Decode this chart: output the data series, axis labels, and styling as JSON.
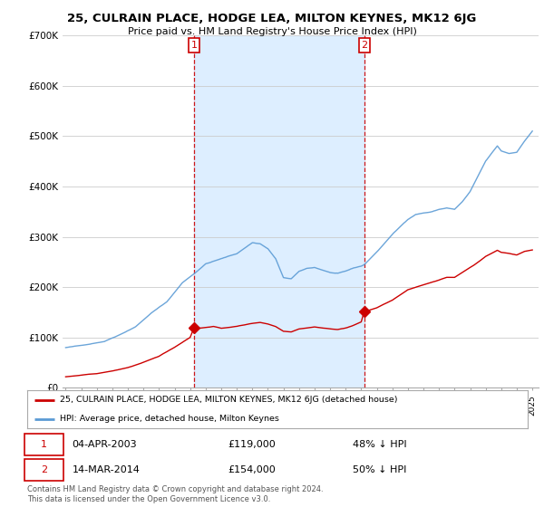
{
  "title": "25, CULRAIN PLACE, HODGE LEA, MILTON KEYNES, MK12 6JG",
  "subtitle": "Price paid vs. HM Land Registry's House Price Index (HPI)",
  "legend_property": "25, CULRAIN PLACE, HODGE LEA, MILTON KEYNES, MK12 6JG (detached house)",
  "legend_hpi": "HPI: Average price, detached house, Milton Keynes",
  "transaction1_date": "04-APR-2003",
  "transaction1_price": 119000,
  "transaction1_label": "48% ↓ HPI",
  "transaction2_date": "14-MAR-2014",
  "transaction2_price": 154000,
  "transaction2_label": "50% ↓ HPI",
  "footer": "Contains HM Land Registry data © Crown copyright and database right 2024.\nThis data is licensed under the Open Government Licence v3.0.",
  "property_color": "#cc0000",
  "hpi_color": "#5b9bd5",
  "shade_color": "#ddeeff",
  "vline_color": "#cc0000",
  "t1_year": 2003.25,
  "t2_year": 2014.2,
  "ylim": [
    0,
    700000
  ],
  "yticks": [
    0,
    100000,
    200000,
    300000,
    400000,
    500000,
    600000,
    700000
  ],
  "ytick_labels": [
    "£0",
    "£100K",
    "£200K",
    "£300K",
    "£400K",
    "£500K",
    "£600K",
    "£700K"
  ],
  "xlim_left": 1994.8,
  "xlim_right": 2025.4,
  "background_color": "#ffffff",
  "grid_color": "#cccccc"
}
